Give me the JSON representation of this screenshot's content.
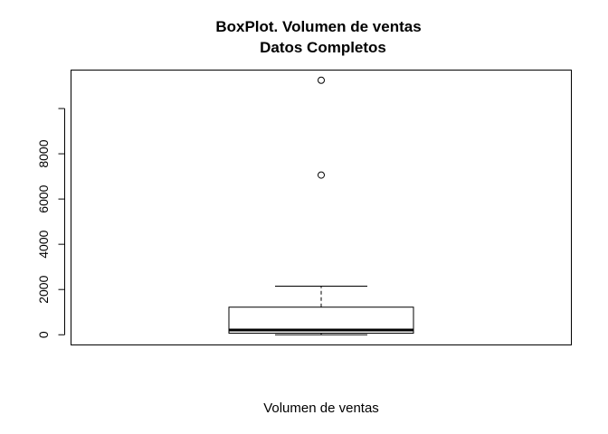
{
  "chart_data": {
    "type": "boxplot",
    "title_line1": "BoxPlot. Volumen de ventas",
    "title_line2": "Datos Completos",
    "xlabel": "Volumen de ventas",
    "ylabel": "",
    "ylim": [
      -450,
      11700
    ],
    "yticks": [
      0,
      2000,
      4000,
      6000,
      8000
    ],
    "ytick_labels": [
      "0",
      "2000",
      "4000",
      "6000",
      "8000"
    ],
    "ytick_extra": [
      10000
    ],
    "grid": false,
    "box": {
      "whisker_low": 0,
      "q1": 70,
      "median": 210,
      "q3": 1220,
      "whisker_high": 2150
    },
    "outliers": [
      7060,
      11250
    ]
  }
}
